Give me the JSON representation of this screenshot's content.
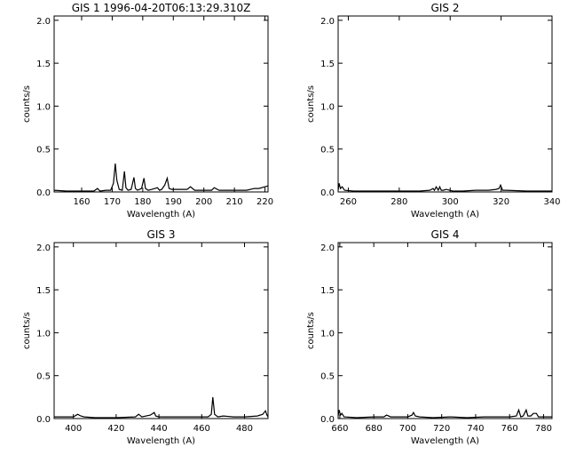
{
  "chart_data": [
    {
      "type": "line",
      "title": "GIS 1 1996-04-20T06:13:29.310Z",
      "xlabel": "Wavelength (A)",
      "ylabel": "counts/s",
      "xlim": [
        151,
        221
      ],
      "ylim": [
        0,
        2.05
      ],
      "xticks": [
        160,
        170,
        180,
        190,
        200,
        210,
        220
      ],
      "yticks": [
        0.0,
        0.5,
        1.0,
        1.5,
        2.0
      ],
      "xtick_labels": [
        "160",
        "170",
        "180",
        "190",
        "200",
        "210",
        "220"
      ],
      "ytick_labels": [
        "0.0",
        "0.5",
        "1.0",
        "1.5",
        "2.0"
      ],
      "grid": false,
      "series": [
        {
          "x": [
            151,
            155,
            160,
            164,
            165.2,
            166,
            168,
            169.5,
            170.4,
            171.0,
            171.5,
            172.3,
            173.3,
            174.0,
            174.5,
            175.2,
            176.2,
            177.1,
            177.6,
            178.3,
            179.6,
            180.4,
            180.9,
            181.8,
            183,
            184.8,
            185.5,
            186.2,
            187.2,
            188.0,
            188.6,
            189.5,
            192,
            194.5,
            195.6,
            197,
            199,
            202.5,
            203.4,
            205,
            210,
            214,
            216.5,
            218,
            221
          ],
          "y": [
            0.02,
            0.01,
            0.01,
            0.01,
            0.04,
            0.01,
            0.02,
            0.02,
            0.1,
            0.33,
            0.14,
            0.03,
            0.02,
            0.24,
            0.05,
            0.02,
            0.03,
            0.17,
            0.04,
            0.02,
            0.04,
            0.16,
            0.04,
            0.02,
            0.03,
            0.05,
            0.02,
            0.03,
            0.08,
            0.16,
            0.04,
            0.03,
            0.03,
            0.03,
            0.06,
            0.02,
            0.02,
            0.02,
            0.05,
            0.02,
            0.02,
            0.02,
            0.04,
            0.04,
            0.07
          ]
        }
      ]
    },
    {
      "type": "line",
      "title": "GIS 2",
      "xlabel": "Wavelength (A)",
      "ylabel": "counts/s",
      "xlim": [
        256,
        340
      ],
      "ylim": [
        0,
        2.05
      ],
      "xticks": [
        260,
        280,
        300,
        320,
        340
      ],
      "yticks": [
        0.0,
        0.5,
        1.0,
        1.5,
        2.0
      ],
      "xtick_labels": [
        "260",
        "280",
        "300",
        "320",
        "340"
      ],
      "ytick_labels": [
        "0.0",
        "0.5",
        "1.0",
        "1.5",
        "2.0"
      ],
      "grid": false,
      "series": [
        {
          "x": [
            256,
            256.4,
            256.9,
            257.6,
            258.5,
            262,
            270,
            280,
            288,
            292,
            293.3,
            293.8,
            294.5,
            295.3,
            295.9,
            296.5,
            297.3,
            298.5,
            301,
            305,
            310,
            315,
            318,
            319.2,
            319.8,
            320.6,
            322,
            330,
            340
          ],
          "y": [
            0.02,
            0.1,
            0.04,
            0.06,
            0.02,
            0.01,
            0.01,
            0.01,
            0.01,
            0.02,
            0.04,
            0.02,
            0.06,
            0.02,
            0.06,
            0.02,
            0.02,
            0.03,
            0.01,
            0.01,
            0.02,
            0.02,
            0.03,
            0.04,
            0.08,
            0.02,
            0.02,
            0.01,
            0.01
          ]
        }
      ]
    },
    {
      "type": "line",
      "title": "GIS 3",
      "xlabel": "Wavelength (A)",
      "ylabel": "counts/s",
      "xlim": [
        391,
        491
      ],
      "ylim": [
        0,
        2.05
      ],
      "xticks": [
        400,
        420,
        440,
        460,
        480
      ],
      "yticks": [
        0.0,
        0.5,
        1.0,
        1.5,
        2.0
      ],
      "xtick_labels": [
        "400",
        "420",
        "440",
        "460",
        "480"
      ],
      "ytick_labels": [
        "0.0",
        "0.5",
        "1.0",
        "1.5",
        "2.0"
      ],
      "grid": false,
      "series": [
        {
          "x": [
            391,
            395,
            400,
            402,
            403.5,
            405,
            410,
            420,
            429,
            430.5,
            432,
            436,
            437.8,
            438.5,
            440,
            445,
            450,
            455,
            458,
            463,
            464.5,
            465.2,
            466,
            467.5,
            470,
            475,
            480,
            486,
            488.5,
            489.8,
            490.5,
            491
          ],
          "y": [
            0.02,
            0.02,
            0.02,
            0.05,
            0.03,
            0.02,
            0.01,
            0.01,
            0.02,
            0.05,
            0.02,
            0.04,
            0.07,
            0.03,
            0.02,
            0.02,
            0.02,
            0.02,
            0.02,
            0.02,
            0.05,
            0.25,
            0.05,
            0.02,
            0.03,
            0.02,
            0.02,
            0.03,
            0.05,
            0.09,
            0.04,
            0.02
          ]
        }
      ]
    },
    {
      "type": "line",
      "title": "GIS 4",
      "xlabel": "Wavelength (A)",
      "ylabel": "counts/s",
      "xlim": [
        659,
        785
      ],
      "ylim": [
        0,
        2.05
      ],
      "xticks": [
        660,
        680,
        700,
        720,
        740,
        760,
        780
      ],
      "yticks": [
        0.0,
        0.5,
        1.0,
        1.5,
        2.0
      ],
      "xtick_labels": [
        "660",
        "680",
        "700",
        "720",
        "740",
        "760",
        "780"
      ],
      "ytick_labels": [
        "0.0",
        "0.5",
        "1.0",
        "1.5",
        "2.0"
      ],
      "grid": false,
      "series": [
        {
          "x": [
            659,
            659.6,
            660.4,
            661.2,
            662.5,
            670,
            680,
            686,
            687.5,
            690,
            700,
            702.5,
            703.4,
            704.5,
            707,
            715,
            725,
            735,
            745,
            755,
            760,
            764,
            765.4,
            766.6,
            768,
            769.8,
            770.8,
            772.5,
            774,
            775.8,
            777,
            780,
            785
          ],
          "y": [
            0.03,
            0.1,
            0.04,
            0.06,
            0.02,
            0.01,
            0.02,
            0.02,
            0.04,
            0.02,
            0.02,
            0.04,
            0.07,
            0.03,
            0.02,
            0.01,
            0.02,
            0.01,
            0.02,
            0.02,
            0.02,
            0.03,
            0.1,
            0.02,
            0.03,
            0.1,
            0.03,
            0.03,
            0.06,
            0.06,
            0.02,
            0.02,
            0.02
          ]
        }
      ]
    }
  ]
}
